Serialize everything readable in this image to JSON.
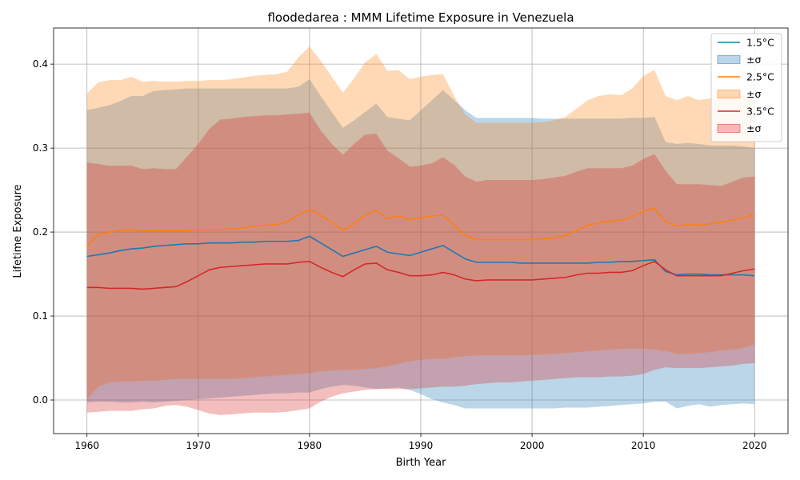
{
  "chart_data": {
    "type": "line",
    "title": "floodedarea : MMM Lifetime Exposure in Venezuela",
    "xlabel": "Birth Year",
    "ylabel": "Lifetime Exposure",
    "xlim": [
      1957,
      2023
    ],
    "ylim": [
      -0.04,
      0.443
    ],
    "xticks": [
      1960,
      1970,
      1980,
      1990,
      2000,
      2010,
      2020
    ],
    "yticks": [
      0.0,
      0.1,
      0.2,
      0.3,
      0.4
    ],
    "xtick_labels": [
      "1960",
      "1970",
      "1980",
      "1990",
      "2000",
      "2010",
      "2020"
    ],
    "ytick_labels": [
      "0.0",
      "0.1",
      "0.2",
      "0.3",
      "0.4"
    ],
    "grid": true,
    "legend_position": "upper-right",
    "legend": [
      "1.5°C",
      "±σ",
      "2.5°C",
      "±σ",
      "3.5°C",
      "±σ"
    ],
    "x": [
      1960,
      1961,
      1962,
      1963,
      1964,
      1965,
      1966,
      1967,
      1968,
      1969,
      1970,
      1971,
      1972,
      1973,
      1974,
      1975,
      1976,
      1977,
      1978,
      1979,
      1980,
      1981,
      1982,
      1983,
      1984,
      1985,
      1986,
      1987,
      1988,
      1989,
      1990,
      1991,
      1992,
      1993,
      1994,
      1995,
      1996,
      1997,
      1998,
      1999,
      2000,
      2001,
      2002,
      2003,
      2004,
      2005,
      2006,
      2007,
      2008,
      2009,
      2010,
      2011,
      2012,
      2013,
      2014,
      2015,
      2016,
      2017,
      2018,
      2019,
      2020
    ],
    "series": [
      {
        "name": "1.5°C",
        "color": "#1f77b4",
        "values": [
          0.171,
          0.173,
          0.175,
          0.178,
          0.18,
          0.181,
          0.183,
          0.184,
          0.185,
          0.186,
          0.186,
          0.187,
          0.187,
          0.187,
          0.188,
          0.188,
          0.189,
          0.189,
          0.189,
          0.19,
          0.195,
          0.187,
          0.179,
          0.171,
          0.175,
          0.179,
          0.183,
          0.176,
          0.174,
          0.172,
          0.176,
          0.18,
          0.184,
          0.176,
          0.168,
          0.164,
          0.164,
          0.164,
          0.164,
          0.163,
          0.163,
          0.163,
          0.163,
          0.163,
          0.163,
          0.163,
          0.164,
          0.164,
          0.165,
          0.165,
          0.166,
          0.167,
          0.153,
          0.149,
          0.15,
          0.15,
          0.149,
          0.149,
          0.149,
          0.149,
          0.148
        ],
        "upper": [
          0.345,
          0.348,
          0.351,
          0.356,
          0.362,
          0.362,
          0.368,
          0.369,
          0.37,
          0.371,
          0.371,
          0.371,
          0.371,
          0.371,
          0.371,
          0.371,
          0.371,
          0.371,
          0.371,
          0.373,
          0.382,
          0.362,
          0.343,
          0.324,
          0.333,
          0.343,
          0.353,
          0.337,
          0.335,
          0.333,
          0.345,
          0.357,
          0.369,
          0.357,
          0.345,
          0.336,
          0.336,
          0.336,
          0.336,
          0.336,
          0.336,
          0.335,
          0.335,
          0.335,
          0.335,
          0.335,
          0.335,
          0.335,
          0.335,
          0.336,
          0.336,
          0.337,
          0.307,
          0.305,
          0.306,
          0.305,
          0.303,
          0.303,
          0.303,
          0.302,
          0.3
        ],
        "lower": [
          -0.003,
          -0.002,
          -0.002,
          -0.003,
          -0.003,
          -0.002,
          -0.003,
          -0.002,
          -0.001,
          0.0,
          0.001,
          0.002,
          0.003,
          0.004,
          0.005,
          0.006,
          0.007,
          0.008,
          0.008,
          0.009,
          0.009,
          0.013,
          0.016,
          0.018,
          0.017,
          0.015,
          0.013,
          0.014,
          0.015,
          0.012,
          0.007,
          0.001,
          -0.003,
          -0.006,
          -0.01,
          -0.01,
          -0.01,
          -0.01,
          -0.01,
          -0.01,
          -0.01,
          -0.01,
          -0.01,
          -0.009,
          -0.009,
          -0.009,
          -0.008,
          -0.007,
          -0.006,
          -0.005,
          -0.004,
          -0.002,
          -0.002,
          -0.01,
          -0.007,
          -0.005,
          -0.008,
          -0.006,
          -0.005,
          -0.004,
          -0.005
        ]
      },
      {
        "name": "2.5°C",
        "color": "#ff7f0e",
        "values": [
          0.183,
          0.197,
          0.2,
          0.202,
          0.203,
          0.201,
          0.202,
          0.202,
          0.202,
          0.202,
          0.203,
          0.203,
          0.203,
          0.204,
          0.205,
          0.207,
          0.208,
          0.209,
          0.212,
          0.22,
          0.227,
          0.22,
          0.212,
          0.202,
          0.21,
          0.22,
          0.226,
          0.216,
          0.219,
          0.215,
          0.217,
          0.219,
          0.22,
          0.208,
          0.196,
          0.191,
          0.191,
          0.191,
          0.191,
          0.191,
          0.191,
          0.192,
          0.193,
          0.196,
          0.202,
          0.208,
          0.211,
          0.213,
          0.214,
          0.218,
          0.225,
          0.228,
          0.212,
          0.207,
          0.209,
          0.208,
          0.21,
          0.212,
          0.214,
          0.217,
          0.221
        ],
        "upper": [
          0.365,
          0.378,
          0.381,
          0.381,
          0.385,
          0.379,
          0.38,
          0.379,
          0.379,
          0.38,
          0.38,
          0.381,
          0.381,
          0.382,
          0.384,
          0.386,
          0.387,
          0.388,
          0.391,
          0.408,
          0.421,
          0.404,
          0.385,
          0.366,
          0.383,
          0.402,
          0.412,
          0.392,
          0.393,
          0.382,
          0.385,
          0.387,
          0.388,
          0.362,
          0.34,
          0.33,
          0.33,
          0.33,
          0.33,
          0.33,
          0.33,
          0.331,
          0.333,
          0.337,
          0.347,
          0.357,
          0.362,
          0.364,
          0.363,
          0.371,
          0.386,
          0.393,
          0.362,
          0.357,
          0.362,
          0.357,
          0.359,
          0.362,
          0.362,
          0.362,
          0.366
        ],
        "lower": [
          0.001,
          0.016,
          0.021,
          0.022,
          0.022,
          0.023,
          0.023,
          0.024,
          0.025,
          0.025,
          0.025,
          0.025,
          0.025,
          0.025,
          0.026,
          0.027,
          0.028,
          0.029,
          0.03,
          0.031,
          0.032,
          0.034,
          0.035,
          0.036,
          0.036,
          0.037,
          0.038,
          0.04,
          0.043,
          0.046,
          0.048,
          0.049,
          0.049,
          0.051,
          0.052,
          0.053,
          0.053,
          0.053,
          0.053,
          0.053,
          0.054,
          0.054,
          0.055,
          0.056,
          0.057,
          0.058,
          0.059,
          0.06,
          0.061,
          0.061,
          0.061,
          0.06,
          0.058,
          0.055,
          0.055,
          0.056,
          0.057,
          0.059,
          0.06,
          0.062,
          0.066
        ]
      },
      {
        "name": "3.5°C",
        "color": "#d62728",
        "values": [
          0.134,
          0.134,
          0.133,
          0.133,
          0.133,
          0.132,
          0.133,
          0.134,
          0.135,
          0.141,
          0.148,
          0.155,
          0.158,
          0.159,
          0.16,
          0.161,
          0.162,
          0.162,
          0.162,
          0.164,
          0.165,
          0.158,
          0.152,
          0.147,
          0.155,
          0.162,
          0.163,
          0.155,
          0.152,
          0.148,
          0.148,
          0.149,
          0.152,
          0.149,
          0.144,
          0.142,
          0.143,
          0.143,
          0.143,
          0.143,
          0.143,
          0.144,
          0.145,
          0.146,
          0.149,
          0.151,
          0.151,
          0.152,
          0.152,
          0.154,
          0.16,
          0.165,
          0.155,
          0.148,
          0.148,
          0.148,
          0.148,
          0.148,
          0.151,
          0.154,
          0.156
        ],
        "upper": [
          0.283,
          0.281,
          0.279,
          0.279,
          0.279,
          0.275,
          0.276,
          0.275,
          0.275,
          0.29,
          0.305,
          0.323,
          0.334,
          0.335,
          0.337,
          0.338,
          0.339,
          0.339,
          0.34,
          0.341,
          0.342,
          0.321,
          0.305,
          0.292,
          0.305,
          0.316,
          0.317,
          0.297,
          0.288,
          0.278,
          0.279,
          0.282,
          0.289,
          0.28,
          0.266,
          0.26,
          0.262,
          0.262,
          0.262,
          0.262,
          0.262,
          0.263,
          0.265,
          0.267,
          0.272,
          0.276,
          0.276,
          0.276,
          0.276,
          0.279,
          0.287,
          0.293,
          0.273,
          0.257,
          0.257,
          0.257,
          0.256,
          0.255,
          0.26,
          0.265,
          0.266
        ],
        "lower": [
          -0.015,
          -0.014,
          -0.013,
          -0.013,
          -0.013,
          -0.011,
          -0.01,
          -0.007,
          -0.006,
          -0.008,
          -0.012,
          -0.016,
          -0.018,
          -0.017,
          -0.016,
          -0.015,
          -0.015,
          -0.015,
          -0.014,
          -0.012,
          -0.01,
          -0.002,
          0.004,
          0.008,
          0.01,
          0.012,
          0.013,
          0.013,
          0.013,
          0.013,
          0.014,
          0.015,
          0.016,
          0.016,
          0.017,
          0.019,
          0.02,
          0.021,
          0.021,
          0.022,
          0.023,
          0.024,
          0.025,
          0.026,
          0.027,
          0.027,
          0.027,
          0.028,
          0.028,
          0.029,
          0.031,
          0.036,
          0.039,
          0.038,
          0.038,
          0.038,
          0.039,
          0.04,
          0.041,
          0.043,
          0.044
        ]
      }
    ]
  }
}
